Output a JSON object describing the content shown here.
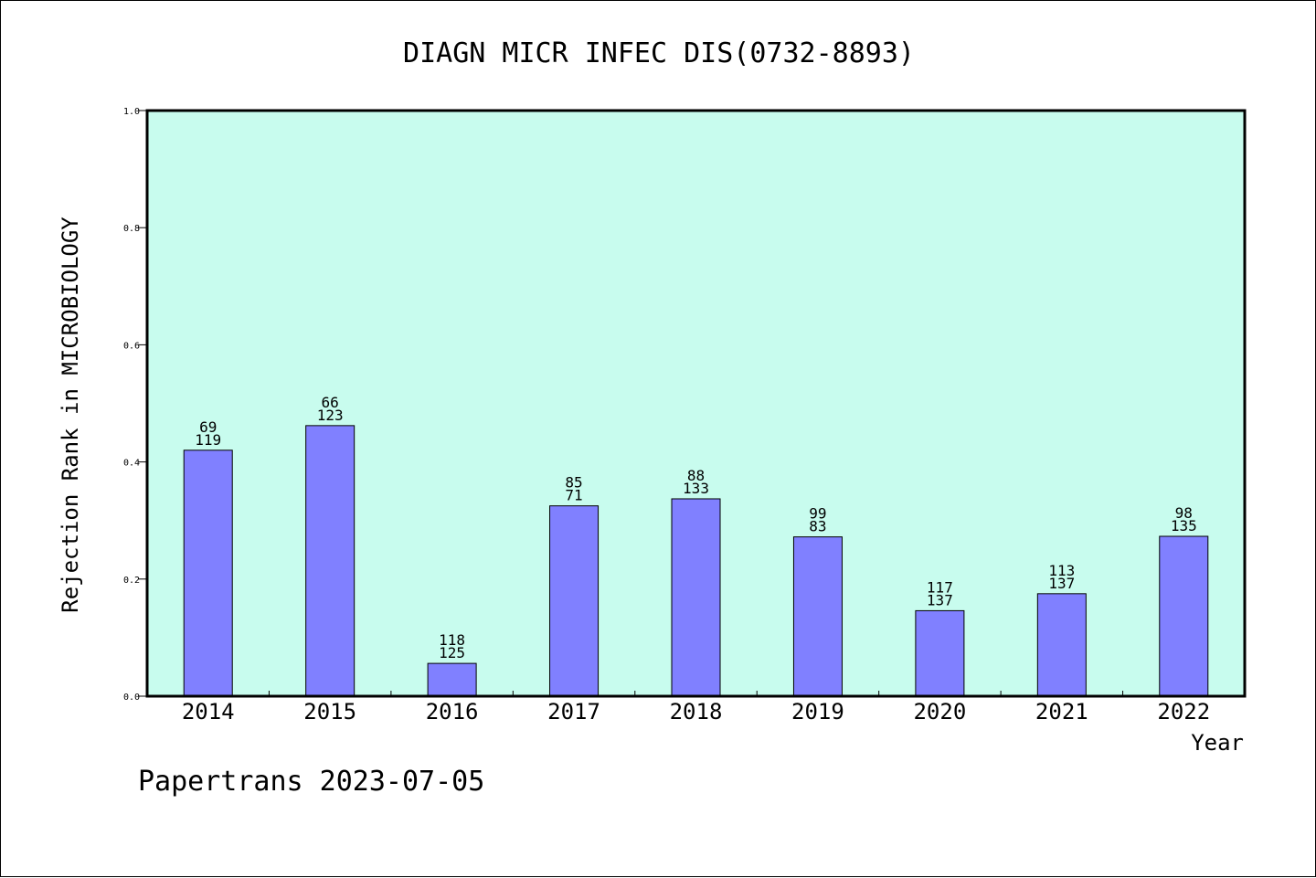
{
  "chart_data": {
    "type": "bar",
    "title": "DIAGN MICR INFEC DIS(0732-8893)",
    "xlabel": "Year",
    "ylabel": "Rejection Rank in MICROBIOLOGY",
    "categories": [
      "2014",
      "2015",
      "2016",
      "2017",
      "2018",
      "2019",
      "2020",
      "2021",
      "2022"
    ],
    "values": [
      0.42,
      0.462,
      0.056,
      0.325,
      0.337,
      0.272,
      0.146,
      0.175,
      0.273
    ],
    "labels_top": [
      "69",
      "66",
      "118",
      "85",
      "88",
      "99",
      "117",
      "113",
      "98"
    ],
    "labels_bottom": [
      "119",
      "123",
      "125",
      "71",
      "133",
      "83",
      "137",
      "137",
      "135"
    ],
    "ylim": [
      0,
      1.0
    ],
    "yticks": [
      "0.0",
      "0.2",
      "0.4",
      "0.6",
      "0.8",
      "1.0"
    ],
    "grid": false,
    "colors": {
      "plot_background": "#c8fcee",
      "bar_fill": "#8080ff",
      "axis": "#000000"
    }
  },
  "footer": {
    "text": "Papertrans 2023-07-05"
  }
}
